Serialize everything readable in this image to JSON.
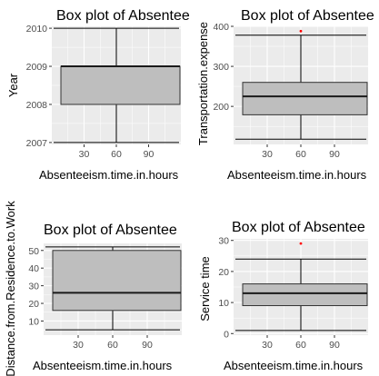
{
  "colors": {
    "panel_background": "#ebebeb",
    "grid_major": "#ffffff",
    "box_fill": "#bebebe",
    "box_line": "#333333",
    "median": "#1a1a1a",
    "whisker": "#000000",
    "outlier": "#ff0000"
  },
  "chart_data": [
    {
      "type": "boxplot",
      "title": "Box plot of Absentee",
      "xlabel": "Absenteeism.time.in.hours",
      "ylabel": "Year",
      "xlim": [
        0,
        120
      ],
      "ylim": [
        2006.95,
        2010.05
      ],
      "xticks": [
        30,
        60,
        90
      ],
      "yticks": [
        2007,
        2008,
        2009,
        2010
      ],
      "grid": true,
      "box": {
        "x_min": 0,
        "x_max": 120,
        "q1": 2008,
        "median": 2009,
        "q3": 2009
      },
      "whisker_bars": [
        2007,
        2010
      ],
      "whisker_stem": [
        2007,
        2010
      ],
      "stem_x": 60,
      "outliers": []
    },
    {
      "type": "boxplot",
      "title": "Box plot of Absentee",
      "xlabel": "Absenteeism.time.in.hours",
      "ylabel": "Transportation.expense",
      "xlim": [
        0,
        120
      ],
      "ylim": [
        105,
        400
      ],
      "xticks": [
        30,
        60,
        90
      ],
      "yticks": [
        200,
        300,
        400
      ],
      "grid": true,
      "box": {
        "x_min": 0,
        "x_max": 120,
        "q1": 179,
        "median": 225,
        "q3": 260
      },
      "whisker_bars": [
        118,
        378
      ],
      "whisker_stem": [
        118,
        378
      ],
      "stem_x": 60,
      "outliers": [
        {
          "x": 60,
          "y": 388
        }
      ]
    },
    {
      "type": "boxplot",
      "title": "Box plot of Absentee",
      "xlabel": "Absenteeism.time.in.hours",
      "ylabel": "Distance.from.Residence.to.Work",
      "xlim": [
        0,
        120
      ],
      "ylim": [
        2,
        54
      ],
      "xticks": [
        30,
        60,
        90
      ],
      "yticks": [
        10,
        20,
        30,
        40,
        50
      ],
      "grid": true,
      "box": {
        "x_min": 0,
        "x_max": 120,
        "q1": 16,
        "median": 26,
        "q3": 50
      },
      "whisker_bars": [
        5,
        52
      ],
      "whisker_stem": [
        5,
        52
      ],
      "stem_x": 60,
      "outliers": []
    },
    {
      "type": "boxplot",
      "title": "Box plot of Absentee",
      "xlabel": "Absenteeism.time.in.hours",
      "ylabel": "Service time",
      "xlim": [
        0,
        120
      ],
      "ylim": [
        -0.5,
        30.5
      ],
      "xticks": [
        30,
        60,
        90
      ],
      "yticks": [
        0,
        10,
        20,
        30
      ],
      "grid": true,
      "box": {
        "x_min": 0,
        "x_max": 120,
        "q1": 9,
        "median": 13,
        "q3": 16
      },
      "whisker_bars": [
        1,
        24
      ],
      "whisker_stem": [
        1,
        24
      ],
      "stem_x": 60,
      "outliers": [
        {
          "x": 60,
          "y": 29
        }
      ]
    }
  ]
}
